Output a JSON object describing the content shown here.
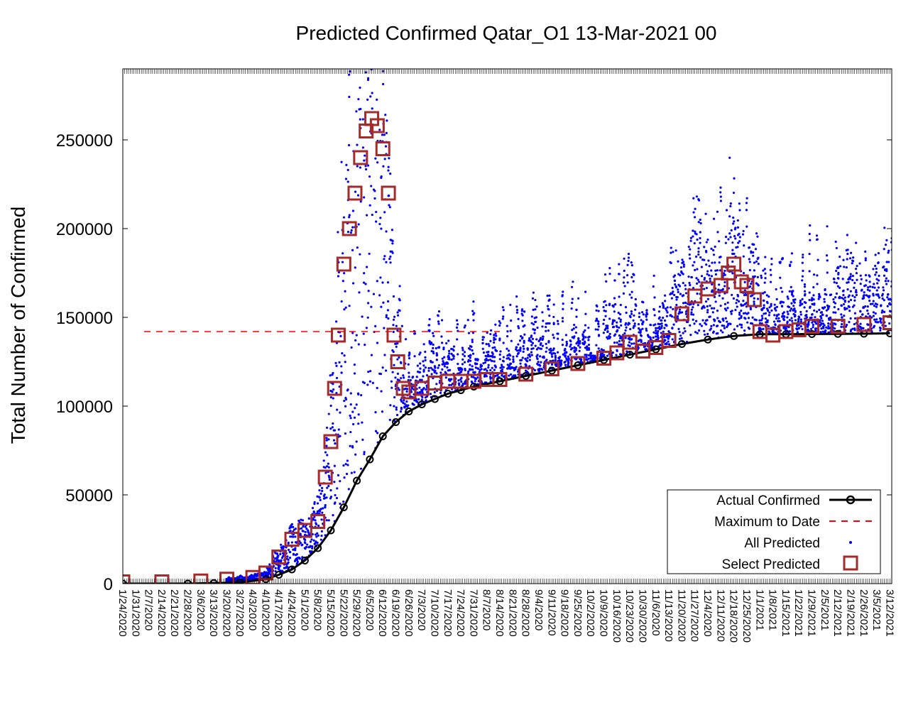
{
  "chart_data": {
    "type": "scatter",
    "title": "Predicted Confirmed Qatar_O1 13-Mar-2021 00",
    "xlabel": "",
    "ylabel": "Total Number of Confirmed",
    "ylim": [
      0,
      290000
    ],
    "yticks": [
      0,
      50000,
      100000,
      150000,
      200000,
      250000
    ],
    "ytick_labels": [
      "0",
      "50000",
      "100000",
      "150000",
      "200000",
      "250000"
    ],
    "x_start": "1/24/2020",
    "x_end": "3/13/2021",
    "xtick_labels": [
      "1/24/2020",
      "1/31/2020",
      "2/7/2020",
      "2/14/2020",
      "2/21/2020",
      "2/28/2020",
      "3/6/2020",
      "3/13/2020",
      "3/20/2020",
      "3/27/2020",
      "4/3/2020",
      "4/10/2020",
      "4/17/2020",
      "4/24/2020",
      "5/1/2020",
      "5/8/2020",
      "5/15/2020",
      "5/22/2020",
      "5/29/2020",
      "6/5/2020",
      "6/12/2020",
      "6/19/2020",
      "6/26/2020",
      "7/3/2020",
      "7/10/2020",
      "7/17/2020",
      "7/24/2020",
      "7/31/2020",
      "8/7/2020",
      "8/14/2020",
      "8/21/2020",
      "8/28/2020",
      "9/4/2020",
      "9/11/2020",
      "9/18/2020",
      "9/25/2020",
      "10/2/2020",
      "10/9/2020",
      "10/16/2020",
      "10/23/2020",
      "10/30/2020",
      "11/6/2020",
      "11/13/2020",
      "11/20/2020",
      "11/27/2020",
      "12/4/2020",
      "12/11/2020",
      "12/18/2020",
      "12/25/2020",
      "1/1/2021",
      "1/8/2021",
      "1/15/2021",
      "1/22/2021",
      "1/29/2021",
      "2/5/2021",
      "2/12/2021",
      "2/19/2021",
      "2/26/2021",
      "3/5/2021",
      "3/12/2021"
    ],
    "max_to_date": 142000,
    "legend_position": "bottom-right",
    "grid": false,
    "series": [
      {
        "name": "Actual Confirmed",
        "style": "line-circle",
        "color": "#000000",
        "x": [
          "1/24/2020",
          "2/28/2020",
          "3/13/2020",
          "3/27/2020",
          "4/10/2020",
          "4/17/2020",
          "4/24/2020",
          "5/1/2020",
          "5/8/2020",
          "5/15/2020",
          "5/22/2020",
          "5/29/2020",
          "6/5/2020",
          "6/12/2020",
          "6/19/2020",
          "6/26/2020",
          "7/3/2020",
          "7/10/2020",
          "7/17/2020",
          "7/24/2020",
          "7/31/2020",
          "8/14/2020",
          "8/28/2020",
          "9/11/2020",
          "9/25/2020",
          "10/9/2020",
          "10/23/2020",
          "11/6/2020",
          "11/20/2020",
          "12/4/2020",
          "12/18/2020",
          "1/1/2021",
          "1/15/2021",
          "1/29/2021",
          "2/12/2021",
          "2/26/2021",
          "3/12/2021"
        ],
        "y": [
          0,
          0,
          300,
          600,
          2500,
          5000,
          8000,
          13000,
          20000,
          30000,
          43000,
          58000,
          70000,
          83000,
          91000,
          97000,
          101000,
          104000,
          107000,
          109000,
          111000,
          114000,
          117000,
          120000,
          123000,
          126000,
          129000,
          132000,
          135000,
          137500,
          139500,
          140500,
          140500,
          140600,
          140700,
          140800,
          141000
        ]
      },
      {
        "name": "Maximum to Date",
        "style": "dashed",
        "color": "#ff0000"
      },
      {
        "name": "All Predicted",
        "style": "dot",
        "color": "#0000ff"
      },
      {
        "name": "Select Predicted",
        "style": "square",
        "color": "#a52a2a",
        "x": [
          "1/24/2020",
          "2/14/2020",
          "3/6/2020",
          "3/20/2020",
          "4/3/2020",
          "4/10/2020",
          "4/17/2020",
          "4/24/2020",
          "5/1/2020",
          "5/8/2020",
          "5/12/2020",
          "5/15/2020",
          "5/17/2020",
          "5/19/2020",
          "5/22/2020",
          "5/25/2020",
          "5/28/2020",
          "5/31/2020",
          "6/3/2020",
          "6/6/2020",
          "6/9/2020",
          "6/12/2020",
          "6/15/2020",
          "6/18/2020",
          "6/20/2020",
          "6/23/2020",
          "6/26/2020",
          "7/3/2020",
          "7/10/2020",
          "7/17/2020",
          "7/24/2020",
          "7/31/2020",
          "8/7/2020",
          "8/14/2020",
          "8/28/2020",
          "9/11/2020",
          "9/25/2020",
          "10/9/2020",
          "10/16/2020",
          "10/23/2020",
          "10/30/2020",
          "11/6/2020",
          "11/13/2020",
          "11/20/2020",
          "11/27/2020",
          "12/4/2020",
          "12/11/2020",
          "12/15/2020",
          "12/18/2020",
          "12/22/2020",
          "12/25/2020",
          "12/29/2020",
          "1/1/2021",
          "1/8/2021",
          "1/15/2021",
          "1/22/2021",
          "1/29/2021",
          "2/12/2021",
          "2/26/2021",
          "3/12/2021"
        ],
        "y": [
          1000,
          1000,
          1500,
          2500,
          3500,
          6000,
          15000,
          25000,
          30000,
          35000,
          60000,
          80000,
          110000,
          140000,
          180000,
          200000,
          220000,
          240000,
          255000,
          262000,
          258000,
          245000,
          220000,
          140000,
          125000,
          110000,
          108000,
          110000,
          113000,
          114000,
          114000,
          114000,
          115000,
          115000,
          118000,
          121000,
          124000,
          127000,
          130000,
          136000,
          131000,
          133000,
          137000,
          152000,
          162000,
          166000,
          168000,
          175000,
          180000,
          170000,
          168000,
          160000,
          142000,
          140000,
          142000,
          143000,
          145000,
          145000,
          146000,
          147000
        ]
      }
    ]
  }
}
